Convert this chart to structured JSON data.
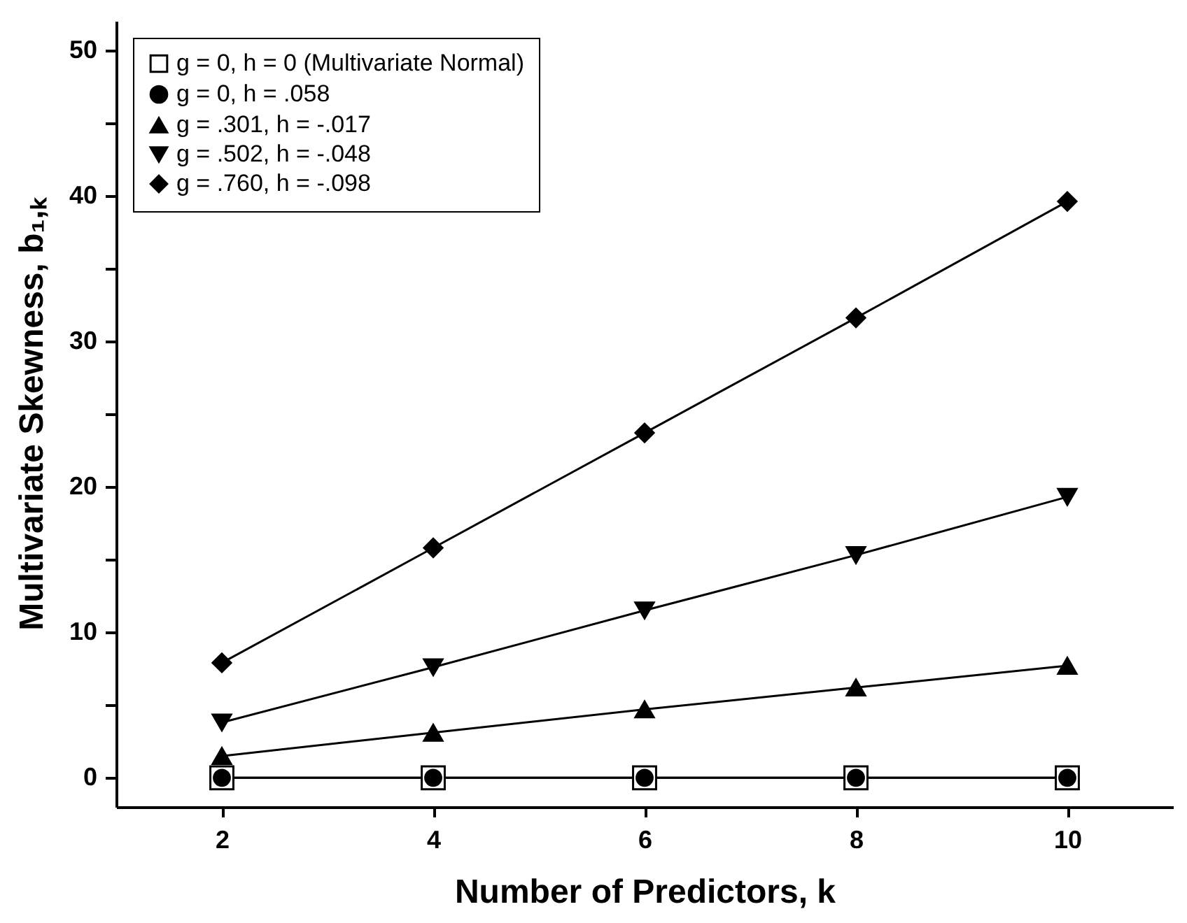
{
  "chart_data": {
    "type": "line",
    "xlabel": "Number of Predictors, k",
    "ylabel": "Multivariate Skewness, b₁,ₖ",
    "x": [
      2,
      4,
      6,
      8,
      10
    ],
    "series": [
      {
        "name": "g = 0, h = 0 (Multivariate Normal)",
        "color": "#000000",
        "marker": "square",
        "values": [
          0,
          0,
          0,
          0,
          0
        ]
      },
      {
        "name": "g = 0, h = .058",
        "color": "#000000",
        "marker": "circle",
        "values": [
          0,
          0,
          0,
          0,
          0
        ]
      },
      {
        "name": "g = .301, h = -.017",
        "color": "#000000",
        "marker": "triangle",
        "values": [
          1.5,
          3.1,
          4.7,
          6.2,
          7.7
        ]
      },
      {
        "name": "g = .502, h = -.048",
        "color": "#000000",
        "marker": "triangle-down",
        "values": [
          3.8,
          7.6,
          11.5,
          15.3,
          19.3
        ]
      },
      {
        "name": "g = .760, h = -.098",
        "color": "#000000",
        "marker": "diamond",
        "values": [
          7.9,
          15.8,
          23.7,
          31.6,
          39.6
        ]
      }
    ],
    "xlim": [
      1,
      11
    ],
    "xticks": [
      2,
      4,
      6,
      8,
      10
    ],
    "ylim": [
      -2,
      52
    ],
    "yticks": [
      0,
      {
        "value": 5,
        "label": null
      },
      10,
      {
        "value": 15,
        "label": null
      },
      20,
      {
        "value": 25,
        "label": null
      },
      30,
      {
        "value": 35,
        "label": null
      },
      40,
      {
        "value": 45,
        "label": null
      },
      50
    ],
    "grid": false,
    "legend": "top left",
    "line_style": "solid"
  }
}
